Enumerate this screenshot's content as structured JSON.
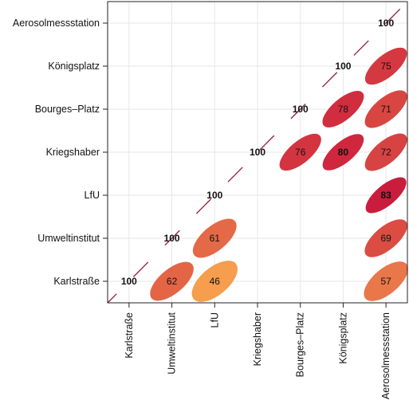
{
  "chart_data": {
    "type": "correlation-matrix",
    "title": "",
    "variables": [
      "Karlstraße",
      "Umweltinstitut",
      "LfU",
      "Kriegshaber",
      "Bourges–Platz",
      "Königsplatz",
      "Aerosolmessstation"
    ],
    "diagonal_value": 100,
    "cells": [
      {
        "row": "Umweltinstitut",
        "col": "LfU",
        "value": 61,
        "bold": false
      },
      {
        "row": "Umweltinstitut",
        "col": "Aerosolmessstation",
        "value": 69,
        "bold": false
      },
      {
        "row": "Karlstraße",
        "col": "Umweltinstitut",
        "value": 62,
        "bold": false
      },
      {
        "row": "Karlstraße",
        "col": "LfU",
        "value": 46,
        "bold": false
      },
      {
        "row": "Karlstraße",
        "col": "Aerosolmessstation",
        "value": 57,
        "bold": false
      },
      {
        "row": "LfU",
        "col": "Aerosolmessstation",
        "value": 83,
        "bold": true
      },
      {
        "row": "Kriegshaber",
        "col": "Bourges–Platz",
        "value": 76,
        "bold": false
      },
      {
        "row": "Kriegshaber",
        "col": "Königsplatz",
        "value": 80,
        "bold": true
      },
      {
        "row": "Kriegshaber",
        "col": "Aerosolmessstation",
        "value": 72,
        "bold": false
      },
      {
        "row": "Bourges–Platz",
        "col": "Königsplatz",
        "value": 78,
        "bold": false
      },
      {
        "row": "Bourges–Platz",
        "col": "Aerosolmessstation",
        "value": 71,
        "bold": false
      },
      {
        "row": "Königsplatz",
        "col": "Aerosolmessstation",
        "value": 75,
        "bold": false
      }
    ],
    "grid": true,
    "colors": {
      "low": "#f7a04e",
      "high": "#c8163c",
      "diagonal_line": "#8e1f3a",
      "grid": "#e6e6e6"
    }
  }
}
